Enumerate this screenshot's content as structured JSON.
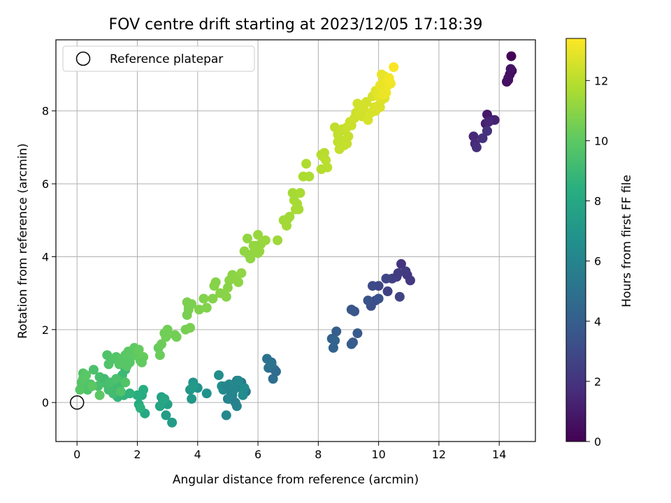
{
  "chart_data": {
    "type": "scatter",
    "title": "FOV centre drift starting at 2023/12/05 17:18:39",
    "xlabel": "Angular distance from reference (arcmin)",
    "ylabel": "Rotation from reference (arcmin)",
    "xlim": [
      -0.7,
      15.2
    ],
    "ylim": [
      -1.07,
      9.95
    ],
    "xticks": [
      0,
      2,
      4,
      6,
      8,
      10,
      12,
      14
    ],
    "yticks": [
      0,
      2,
      4,
      6,
      8
    ],
    "grid": true,
    "legend": {
      "placement": "top-left",
      "entries": [
        "Reference platepar"
      ]
    },
    "reference_point": {
      "x": 0,
      "y": 0
    },
    "colorbar": {
      "label": "Hours from first FF file",
      "range": [
        0,
        13.4
      ],
      "ticks": [
        0,
        2,
        4,
        6,
        8,
        10,
        12
      ],
      "colormap": "viridis"
    },
    "series": [
      {
        "x": [
          14.4,
          14.42,
          14.35,
          14.3,
          14.25,
          14.3,
          14.38,
          13.6,
          13.75,
          13.55,
          13.85,
          13.6,
          13.65,
          13.15,
          13.2,
          13.25,
          13.45,
          13.6
        ],
        "y": [
          9.5,
          9.1,
          9.0,
          8.85,
          8.8,
          8.9,
          9.15,
          7.9,
          7.75,
          7.65,
          7.75,
          7.45,
          7.7,
          7.3,
          7.1,
          7.0,
          7.25,
          7.45
        ],
        "c": [
          0.1,
          0.2,
          0.3,
          0.4,
          0.5,
          0.6,
          0.7,
          0.9,
          1.0,
          1.1,
          1.2,
          1.3,
          1.4,
          1.5,
          1.6,
          1.7,
          1.8,
          1.9
        ]
      },
      {
        "x": [
          10.75,
          10.95,
          11.05,
          10.9,
          10.6,
          10.45,
          10.3,
          10.7,
          10.25,
          10.0,
          9.8,
          9.9,
          9.75,
          10.0,
          9.65,
          9.2,
          9.1,
          9.15,
          9.3,
          9.1,
          8.6,
          8.45,
          8.5,
          8.55,
          10.65
        ],
        "y": [
          3.8,
          3.5,
          3.35,
          3.6,
          3.45,
          3.4,
          3.05,
          2.9,
          3.4,
          3.2,
          3.2,
          2.8,
          2.65,
          2.85,
          2.8,
          2.5,
          2.55,
          1.65,
          1.9,
          1.6,
          1.95,
          1.75,
          1.5,
          1.7,
          3.55
        ],
        "c": [
          2.0,
          2.1,
          2.2,
          2.3,
          2.4,
          2.5,
          2.6,
          2.7,
          2.8,
          2.9,
          3.0,
          3.1,
          3.2,
          3.3,
          3.4,
          3.5,
          3.6,
          3.7,
          3.8,
          3.9,
          4.0,
          4.1,
          4.2,
          4.3,
          2.35
        ]
      },
      {
        "x": [
          6.45,
          6.55,
          6.6,
          6.5,
          6.35,
          6.3,
          6.45,
          5.6,
          5.45,
          5.3,
          5.2,
          5.1,
          5.0,
          5.35,
          5.5,
          5.15,
          5.05,
          4.95,
          5.05,
          4.85,
          4.8,
          4.7,
          5.25,
          5.3,
          4.95,
          5.2,
          5.35,
          5.55,
          5.5
        ],
        "y": [
          1.1,
          0.9,
          0.85,
          0.65,
          0.95,
          1.2,
          1.05,
          0.3,
          0.55,
          0.6,
          0.4,
          0.3,
          0.1,
          0.45,
          0.35,
          0.2,
          0.1,
          -0.35,
          0.5,
          0.35,
          0.45,
          0.75,
          0.0,
          -0.1,
          0.45,
          0.35,
          0.6,
          0.4,
          0.2
        ],
        "c": [
          4.5,
          4.6,
          4.7,
          4.8,
          4.9,
          5.0,
          5.1,
          5.2,
          5.3,
          5.4,
          5.5,
          5.6,
          5.7,
          5.8,
          5.9,
          6.0,
          6.1,
          6.2,
          6.3,
          6.4,
          6.5,
          6.6,
          5.85,
          5.95,
          6.05,
          6.15,
          6.25,
          6.35,
          6.45
        ]
      },
      {
        "x": [
          4.3,
          4.0,
          3.85,
          3.75,
          3.8,
          3.85,
          3.15,
          2.95,
          3.0,
          2.85,
          2.8,
          2.75,
          2.9,
          2.25,
          2.15,
          2.05,
          2.2,
          2.0,
          2.1
        ],
        "y": [
          0.25,
          0.4,
          0.55,
          0.35,
          0.1,
          0.45,
          -0.55,
          -0.35,
          -0.05,
          0.05,
          0.15,
          -0.1,
          0.1,
          -0.3,
          0.2,
          -0.05,
          0.35,
          0.2,
          -0.15
        ],
        "c": [
          6.7,
          6.8,
          6.9,
          7.0,
          7.1,
          7.2,
          7.3,
          7.4,
          7.5,
          7.6,
          7.7,
          7.8,
          7.9,
          8.0,
          8.1,
          8.2,
          8.3,
          8.4,
          8.5
        ]
      },
      {
        "x": [
          1.75,
          1.55,
          1.45,
          1.35,
          1.3,
          1.25,
          1.15,
          1.6,
          1.5,
          1.4,
          1.5,
          1.3,
          1.2,
          1.05,
          0.95,
          0.85,
          0.75,
          0.7,
          0.55,
          0.45,
          0.35,
          0.25,
          0.2,
          0.15,
          0.1,
          0.2,
          0.3,
          0.5,
          0.75,
          0.9,
          1.0,
          1.1,
          1.3,
          1.45,
          1.6
        ],
        "y": [
          0.25,
          0.2,
          0.3,
          0.15,
          0.2,
          0.5,
          0.55,
          0.9,
          0.75,
          0.45,
          0.6,
          0.4,
          0.25,
          0.35,
          0.55,
          0.6,
          0.7,
          0.45,
          0.9,
          0.5,
          0.35,
          0.6,
          0.8,
          0.55,
          0.35,
          0.65,
          0.75,
          0.45,
          0.2,
          0.65,
          0.5,
          0.55,
          0.65,
          0.3,
          0.55
        ],
        "c": [
          8.6,
          8.65,
          8.7,
          8.75,
          8.8,
          8.85,
          8.9,
          8.95,
          9.0,
          9.05,
          9.1,
          9.15,
          9.2,
          9.25,
          9.3,
          9.35,
          9.4,
          9.45,
          9.5,
          9.55,
          9.6,
          9.65,
          9.7,
          9.75,
          9.8,
          9.85,
          9.9,
          9.95,
          10.0,
          9.2,
          9.3,
          9.4,
          9.5,
          9.6,
          9.7
        ]
      },
      {
        "x": [
          1.0,
          1.05,
          1.2,
          1.3,
          1.4,
          1.5,
          1.6,
          1.7,
          1.8,
          1.9,
          2.0,
          2.1,
          2.2,
          1.75,
          1.65,
          2.05,
          2.15,
          2.7,
          2.75,
          2.8,
          2.9,
          3.0,
          2.95,
          3.3,
          3.25,
          3.6,
          3.75,
          3.7,
          3.8,
          3.7,
          3.65,
          3.65,
          4.05,
          4.2,
          4.3,
          4.5,
          4.6,
          4.55,
          4.75,
          4.95,
          5.05,
          5.15,
          5.25,
          5.35,
          5.45,
          5.0
        ],
        "y": [
          1.3,
          1.05,
          1.2,
          1.25,
          1.05,
          1.2,
          1.3,
          1.4,
          1.25,
          1.5,
          1.3,
          1.15,
          1.25,
          1.1,
          1.0,
          1.45,
          1.1,
          1.5,
          1.3,
          1.6,
          1.9,
          2.0,
          1.8,
          1.8,
          1.85,
          2.0,
          2.05,
          2.55,
          2.7,
          2.6,
          2.75,
          2.4,
          2.55,
          2.85,
          2.6,
          2.85,
          3.3,
          3.2,
          3.0,
          2.9,
          3.35,
          3.5,
          3.4,
          3.3,
          3.55,
          3.15
        ],
        "c": [
          9.6,
          9.65,
          9.7,
          9.75,
          9.8,
          9.85,
          9.9,
          9.95,
          10.0,
          10.05,
          10.1,
          10.15,
          10.2,
          9.9,
          9.85,
          10.2,
          10.1,
          10.25,
          10.3,
          10.35,
          10.4,
          10.45,
          10.45,
          10.5,
          10.5,
          10.55,
          10.6,
          10.65,
          10.7,
          10.65,
          10.7,
          10.6,
          10.75,
          10.8,
          10.8,
          10.85,
          10.9,
          10.9,
          10.95,
          10.95,
          11.0,
          11.0,
          11.05,
          11.05,
          11.1,
          10.95
        ]
      },
      {
        "x": [
          5.55,
          5.65,
          5.7,
          5.85,
          5.9,
          6.0,
          6.1,
          6.25,
          6.05,
          5.75,
          5.95,
          6.0,
          6.65,
          6.85,
          6.95,
          7.05,
          7.15,
          7.2,
          7.25,
          7.3,
          7.4,
          7.0,
          7.35,
          7.5,
          7.6,
          7.7
        ],
        "y": [
          4.15,
          4.5,
          4.05,
          4.3,
          4.2,
          4.6,
          4.35,
          4.45,
          4.15,
          3.95,
          4.3,
          4.1,
          4.45,
          5.0,
          4.85,
          5.1,
          5.75,
          5.55,
          5.3,
          5.45,
          5.75,
          5.05,
          5.3,
          6.2,
          6.55,
          6.2
        ],
        "c": [
          11.1,
          11.15,
          11.15,
          11.2,
          11.2,
          11.25,
          11.25,
          11.3,
          11.3,
          11.1,
          11.2,
          11.2,
          11.4,
          11.45,
          11.5,
          11.5,
          11.55,
          11.6,
          11.55,
          11.6,
          11.65,
          11.5,
          11.6,
          11.7,
          11.75,
          11.7
        ]
      },
      {
        "x": [
          8.1,
          8.15,
          8.25,
          8.3,
          8.2,
          8.1,
          8.55,
          8.65,
          8.75,
          8.85,
          8.9,
          8.95,
          9.0,
          8.7,
          8.8,
          8.65,
          8.95,
          9.05,
          9.1,
          9.2,
          9.25,
          9.3,
          9.35,
          9.4,
          9.5,
          9.55,
          9.6,
          9.45,
          9.65,
          9.75,
          9.85,
          9.9,
          10.0,
          10.1,
          10.2,
          10.05,
          9.8
        ],
        "y": [
          6.8,
          6.75,
          6.65,
          6.45,
          6.85,
          6.4,
          7.55,
          7.35,
          7.45,
          7.05,
          7.2,
          7.1,
          7.3,
          6.95,
          7.5,
          7.15,
          7.55,
          7.7,
          7.6,
          7.8,
          7.95,
          8.2,
          8.0,
          7.9,
          8.05,
          8.2,
          8.25,
          7.85,
          7.75,
          7.95,
          8.1,
          8.0,
          8.15,
          8.3,
          8.35,
          8.1,
          8.4
        ],
        "c": [
          11.9,
          11.95,
          12.0,
          12.0,
          11.95,
          11.9,
          12.1,
          12.15,
          12.15,
          12.2,
          12.2,
          12.25,
          12.25,
          12.2,
          12.2,
          12.15,
          12.3,
          12.35,
          12.35,
          12.4,
          12.4,
          12.45,
          12.45,
          12.5,
          12.5,
          12.55,
          12.55,
          12.45,
          12.6,
          12.6,
          12.65,
          12.65,
          12.7,
          12.7,
          12.75,
          12.7,
          12.6
        ]
      },
      {
        "x": [
          9.9,
          10.0,
          10.05,
          10.15,
          10.2,
          10.25,
          10.3,
          10.35,
          10.1,
          10.2,
          10.3,
          10.4,
          10.25,
          10.15,
          10.05,
          10.35,
          10.5
        ],
        "y": [
          8.55,
          8.4,
          8.65,
          8.8,
          8.95,
          8.75,
          8.7,
          8.85,
          9.0,
          8.6,
          8.8,
          8.75,
          8.5,
          8.45,
          8.7,
          8.9,
          9.2
        ],
        "c": [
          12.8,
          12.85,
          12.9,
          12.95,
          13.0,
          13.0,
          13.05,
          13.1,
          13.0,
          13.05,
          13.1,
          13.15,
          13.1,
          13.05,
          13.0,
          13.2,
          13.3
        ]
      }
    ]
  }
}
